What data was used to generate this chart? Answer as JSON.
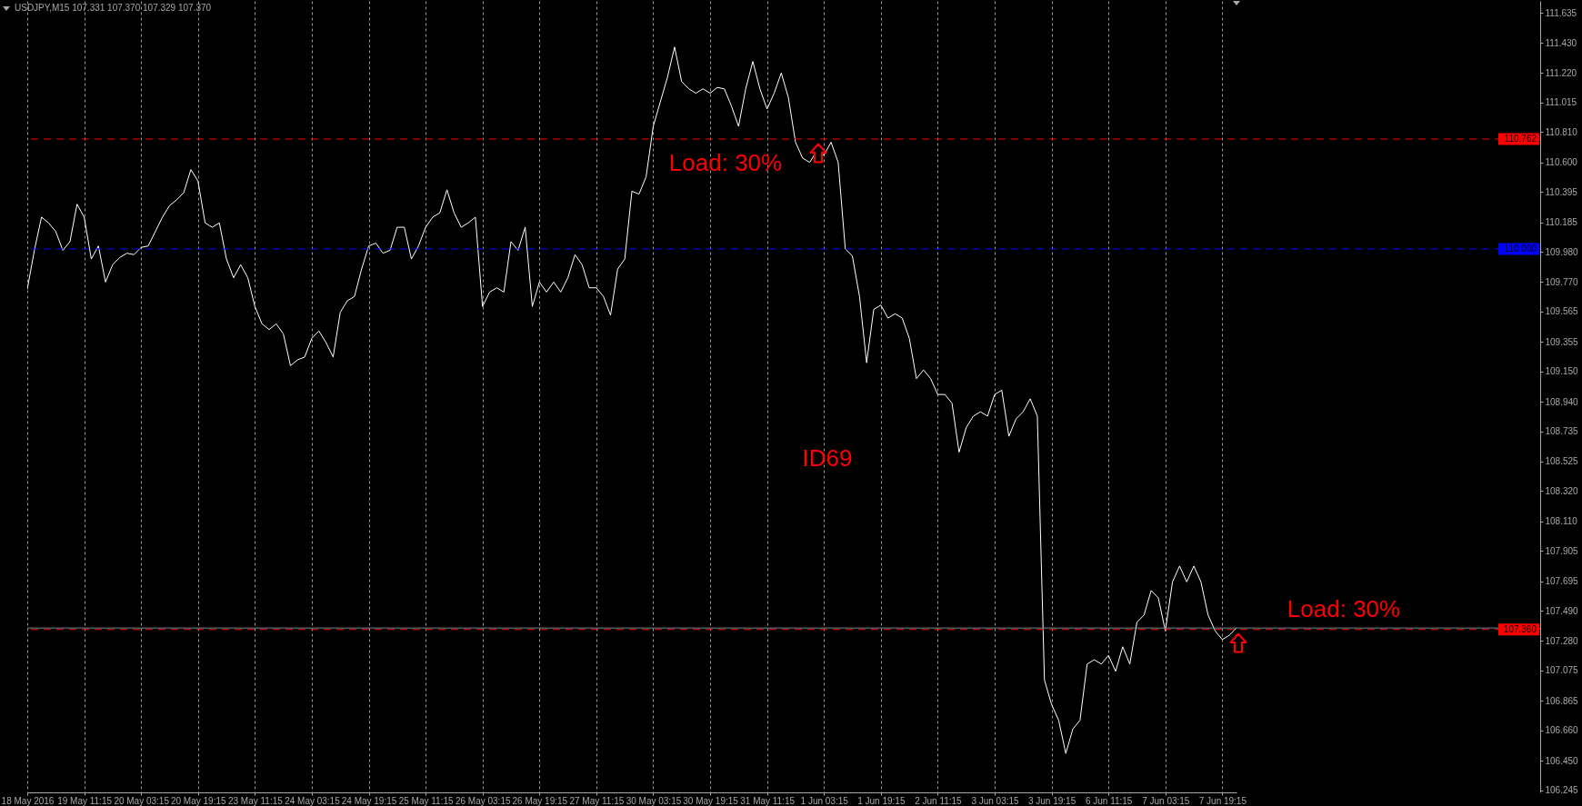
{
  "chart_data": {
    "type": "line",
    "title": "USDJPY,M15 107.331 107.370 107.329 107.370",
    "categories": [
      "18 May 2016",
      null,
      null,
      null,
      null,
      null,
      null,
      null,
      "19 May 11:15",
      null,
      null,
      null,
      null,
      null,
      null,
      null,
      "20 May 03:15",
      null,
      null,
      null,
      null,
      null,
      null,
      null,
      "20 May 19:15",
      null,
      null,
      null,
      null,
      null,
      null,
      null,
      "23 May 11:15",
      null,
      null,
      null,
      null,
      null,
      null,
      null,
      "24 May 03:15",
      null,
      null,
      null,
      null,
      null,
      null,
      null,
      "24 May 19:15",
      null,
      null,
      null,
      null,
      null,
      null,
      null,
      "25 May 11:15",
      null,
      null,
      null,
      null,
      null,
      null,
      null,
      "26 May 03:15",
      null,
      null,
      null,
      null,
      null,
      null,
      null,
      "26 May 19:15",
      null,
      null,
      null,
      null,
      null,
      null,
      null,
      "27 May 11:15",
      null,
      null,
      null,
      null,
      null,
      null,
      null,
      "30 May 03:15",
      null,
      null,
      null,
      null,
      null,
      null,
      null,
      "30 May 19:15",
      null,
      null,
      null,
      null,
      null,
      null,
      null,
      "31 May 11:15",
      null,
      null,
      null,
      null,
      null,
      null,
      null,
      "1 Jun 03:15",
      null,
      null,
      null,
      null,
      null,
      null,
      null,
      "1 Jun 19:15",
      null,
      null,
      null,
      null,
      null,
      null,
      null,
      "2 Jun 11:15",
      null,
      null,
      null,
      null,
      null,
      null,
      null,
      "3 Jun 03:15",
      null,
      null,
      null,
      null,
      null,
      null,
      null,
      "3 Jun 19:15",
      null,
      null,
      null,
      null,
      null,
      null,
      null,
      "6 Jun 11:15",
      null,
      null,
      null,
      null,
      null,
      null,
      null,
      "7 Jun 03:15",
      null,
      null,
      null,
      null,
      null,
      null,
      null,
      "7 Jun 19:15",
      null,
      null
    ],
    "series": [
      {
        "color": "#ffffff",
        "values": [
          109.72,
          109.99,
          110.22,
          110.18,
          110.12,
          109.99,
          110.05,
          110.31,
          110.22,
          109.93,
          110.02,
          109.77,
          109.89,
          109.94,
          109.97,
          109.96,
          110.01,
          110.02,
          110.12,
          110.22,
          110.3,
          110.34,
          110.39,
          110.55,
          110.47,
          110.18,
          110.15,
          110.18,
          109.93,
          109.8,
          109.89,
          109.8,
          109.6,
          109.48,
          109.44,
          109.48,
          109.41,
          109.19,
          109.23,
          109.25,
          109.38,
          109.43,
          109.35,
          109.25,
          109.56,
          109.64,
          109.67,
          109.86,
          110.02,
          110.04,
          109.97,
          109.99,
          110.15,
          110.15,
          109.93,
          110.02,
          110.15,
          110.22,
          110.25,
          110.41,
          110.25,
          110.15,
          110.18,
          110.22,
          109.6,
          109.7,
          109.73,
          109.7,
          110.05,
          109.99,
          110.15,
          109.6,
          109.77,
          109.7,
          109.77,
          109.7,
          109.8,
          109.96,
          109.89,
          109.73,
          109.73,
          109.67,
          109.54,
          109.86,
          109.93,
          110.4,
          110.38,
          110.5,
          110.85,
          111.02,
          111.19,
          111.4,
          111.16,
          111.11,
          111.08,
          111.11,
          111.08,
          111.12,
          111.11,
          110.99,
          110.85,
          111.11,
          111.3,
          111.11,
          110.97,
          111.08,
          111.22,
          111.05,
          110.74,
          110.63,
          110.6,
          110.68,
          110.65,
          110.74,
          110.6,
          110.0,
          109.95,
          109.67,
          109.21,
          109.58,
          109.61,
          109.52,
          109.55,
          109.52,
          109.38,
          109.1,
          109.16,
          109.1,
          108.99,
          108.99,
          108.93,
          108.59,
          108.76,
          108.84,
          108.87,
          108.84,
          108.99,
          109.02,
          108.7,
          108.82,
          108.87,
          108.96,
          108.84,
          107.01,
          106.84,
          106.73,
          106.5,
          106.67,
          106.73,
          107.12,
          107.15,
          107.12,
          107.18,
          107.07,
          107.24,
          107.12,
          107.41,
          107.46,
          107.63,
          107.58,
          107.35,
          107.69,
          107.8,
          107.69,
          107.8,
          107.69,
          107.46,
          107.35,
          107.29,
          107.32,
          107.37
        ]
      }
    ],
    "ylim": [
      106.23,
      111.72
    ],
    "yticks": [
      111.635,
      {
        "value": 111.43,
        "label": "111.430"
      },
      {
        "value": 111.22,
        "label": "111.220"
      },
      111.015,
      {
        "value": 110.81,
        "label": "110.810"
      },
      {
        "value": 110.6,
        "label": "110.600"
      },
      110.395,
      110.185,
      {
        "value": 109.98,
        "label": "109.980"
      },
      {
        "value": 109.77,
        "label": "109.770"
      },
      109.565,
      109.355,
      {
        "value": 109.15,
        "label": "109.150"
      },
      {
        "value": 108.94,
        "label": "108.940"
      },
      108.735,
      108.525,
      {
        "value": 108.32,
        "label": "108.320"
      },
      {
        "value": 108.11,
        "label": "108.110"
      },
      107.905,
      107.695,
      {
        "value": 107.49,
        "label": "107.490"
      },
      {
        "value": 107.28,
        "label": "107.280"
      },
      107.075,
      106.865,
      {
        "value": 106.66,
        "label": "106.660"
      },
      {
        "value": 106.45,
        "label": "106.450"
      },
      106.245
    ],
    "grid": "x",
    "ref_lines": [
      {
        "axis": "y",
        "value": 110.762,
        "label": "110.762",
        "color": "#ff0000",
        "line_style": "dashed"
      },
      {
        "axis": "y",
        "value": 110,
        "label": "110.000",
        "color": "#0000ff",
        "line_style": "dashed"
      },
      {
        "axis": "y",
        "value": 107.37,
        "color": "#778899",
        "line_style": "solid"
      },
      {
        "axis": "y",
        "value": 107.36,
        "label": "107.360",
        "color": "#ff0000",
        "line_style": "dashed"
      }
    ],
    "annotations": [
      "Load: 30%",
      "ID69",
      "Load: 30%"
    ]
  }
}
